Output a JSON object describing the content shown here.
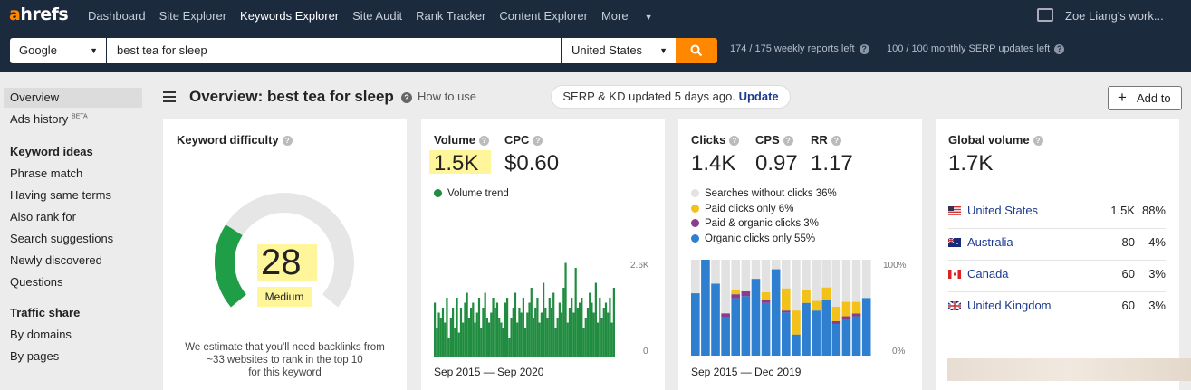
{
  "nav": {
    "logo_a": "a",
    "logo_rest": "hrefs",
    "links": [
      "Dashboard",
      "Site Explorer",
      "Keywords Explorer",
      "Site Audit",
      "Rank Tracker",
      "Content Explorer",
      "More"
    ],
    "active": "Keywords Explorer",
    "user": "Zoe Liang's work..."
  },
  "search": {
    "engine": "Google",
    "query": "best tea for sleep",
    "country": "United States",
    "weekly_reports": "174 / 175 weekly reports left",
    "serp_updates": "100 / 100 monthly SERP updates left"
  },
  "sidebar": {
    "items_top": [
      "Overview",
      "Ads history"
    ],
    "beta": "BETA",
    "keyword_ideas_heading": "Keyword ideas",
    "keyword_ideas": [
      "Phrase match",
      "Having same terms",
      "Also rank for",
      "Search suggestions",
      "Newly discovered",
      "Questions"
    ],
    "traffic_heading": "Traffic share",
    "traffic": [
      "By domains",
      "By pages"
    ]
  },
  "header": {
    "title": "Overview: best tea for sleep",
    "how_to": "How to use",
    "serp_text": "SERP & KD updated 5 days ago.",
    "serp_link": "Update",
    "add_to": "Add to"
  },
  "kd_card": {
    "title": "Keyword difficulty",
    "value": "28",
    "label": "Medium",
    "level": 0.28,
    "note_1": "We estimate that you'll need backlinks from",
    "note_2": "~33 websites to rank in the top 10",
    "note_3": "for this keyword",
    "colors": {
      "fill": "#1f9e47",
      "track": "#e6e6e6",
      "highlight": "#fff59a"
    }
  },
  "volume_card": {
    "volume_label": "Volume",
    "volume_value": "1.5K",
    "cpc_label": "CPC",
    "cpc_value": "$0.60",
    "trend_label": "Volume trend",
    "y_top": "2.6K",
    "y_bottom": "0",
    "date_range": "Sep 2015 — Sep 2020",
    "trend_color": "#1f8c3f",
    "trend_values": [
      0.55,
      0.3,
      0.45,
      0.4,
      0.5,
      0.35,
      0.6,
      0.2,
      0.4,
      0.5,
      0.3,
      0.6,
      0.25,
      0.5,
      0.35,
      0.55,
      0.65,
      0.4,
      0.5,
      0.55,
      0.35,
      0.45,
      0.6,
      0.3,
      0.5,
      0.65,
      0.4,
      0.35,
      0.45,
      0.6,
      0.5,
      0.55,
      0.4,
      0.35,
      0.3,
      0.55,
      0.6,
      0.2,
      0.4,
      0.5,
      0.65,
      0.35,
      0.5,
      0.45,
      0.6,
      0.3,
      0.45,
      0.55,
      0.7,
      0.4,
      0.5,
      0.6,
      0.35,
      0.45,
      0.75,
      0.5,
      0.4,
      0.6,
      0.5,
      0.65,
      0.3,
      0.4,
      0.55,
      0.45,
      0.7,
      0.95,
      0.35,
      0.5,
      0.6,
      0.45,
      0.9,
      0.5,
      0.55,
      0.6,
      0.3,
      0.4,
      0.5,
      0.65,
      0.55,
      0.45,
      0.75,
      0.35,
      0.6,
      0.4,
      0.5,
      0.55,
      0.45,
      0.6,
      0.35,
      0.7
    ]
  },
  "clicks_card": {
    "clicks_label": "Clicks",
    "clicks_value": "1.4K",
    "cps_label": "CPS",
    "cps_value": "0.97",
    "rr_label": "RR",
    "rr_value": "1.17",
    "legend": [
      {
        "label": "Searches without clicks 36%",
        "color": "#e2e2e2"
      },
      {
        "label": "Paid clicks only 6%",
        "color": "#f2c21a"
      },
      {
        "label": "Paid & organic clicks 3%",
        "color": "#8a3d8c"
      },
      {
        "label": "Organic clicks only 55%",
        "color": "#2f7fd1"
      }
    ],
    "y_top": "100%",
    "y_bottom": "0%",
    "date_range": "Sep 2015 — Dec 2019",
    "bars": [
      {
        "o": 0.65,
        "pd": 0,
        "p": 0
      },
      {
        "o": 1.0,
        "pd": 0,
        "p": 0
      },
      {
        "o": 0.75,
        "pd": 0,
        "p": 0
      },
      {
        "o": 0.4,
        "pd": 0.04,
        "p": 0
      },
      {
        "o": 0.6,
        "pd": 0.04,
        "p": 0.04
      },
      {
        "o": 0.62,
        "pd": 0.05,
        "p": 0
      },
      {
        "o": 0.8,
        "pd": 0,
        "p": 0
      },
      {
        "o": 0.55,
        "pd": 0.03,
        "p": 0.08
      },
      {
        "o": 0.9,
        "pd": 0,
        "p": 0
      },
      {
        "o": 0.45,
        "pd": 0.02,
        "p": 0.23
      },
      {
        "o": 0.22,
        "pd": 0,
        "p": 0.25
      },
      {
        "o": 0.55,
        "pd": 0,
        "p": 0.13
      },
      {
        "o": 0.47,
        "pd": 0,
        "p": 0.1
      },
      {
        "o": 0.58,
        "pd": 0,
        "p": 0.13
      },
      {
        "o": 0.33,
        "pd": 0.03,
        "p": 0.15
      },
      {
        "o": 0.38,
        "pd": 0.03,
        "p": 0.15
      },
      {
        "o": 0.41,
        "pd": 0.03,
        "p": 0.12
      },
      {
        "o": 0.6,
        "pd": 0,
        "p": 0
      }
    ]
  },
  "global_card": {
    "title": "Global volume",
    "value": "1.7K",
    "countries": [
      {
        "name": "United States",
        "volume": "1.5K",
        "pct": "88%",
        "flag": "us"
      },
      {
        "name": "Australia",
        "volume": "80",
        "pct": "4%",
        "flag": "au"
      },
      {
        "name": "Canada",
        "volume": "60",
        "pct": "3%",
        "flag": "ca"
      },
      {
        "name": "United Kingdom",
        "volume": "60",
        "pct": "3%",
        "flag": "gb"
      }
    ]
  }
}
